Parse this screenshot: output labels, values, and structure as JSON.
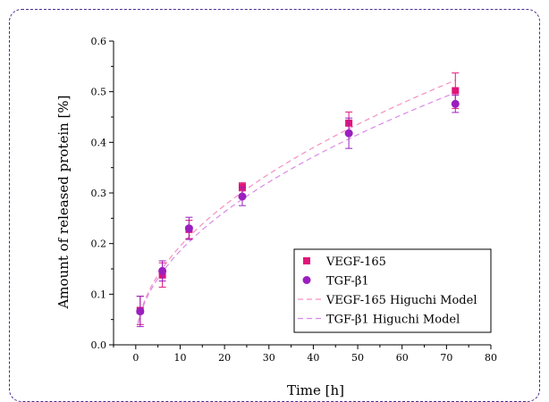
{
  "chart_data": {
    "type": "scatter",
    "xlabel": "Time [h]",
    "ylabel": "Amount of released protein [%]",
    "xlim": [
      -5,
      80
    ],
    "ylim": [
      0,
      0.6
    ],
    "xticks": [
      "0",
      "10",
      "20",
      "30",
      "40",
      "50",
      "60",
      "70",
      "80"
    ],
    "yticks": [
      "0.0",
      "0.1",
      "0.2",
      "0.3",
      "0.4",
      "0.5",
      "0.6"
    ],
    "grid": false,
    "legend_position": "bottom-right",
    "series": [
      {
        "name": "VEGF-165",
        "marker": "square",
        "color": "#e0157a",
        "x": [
          1,
          6,
          12,
          24,
          48,
          72
        ],
        "y": [
          0.068,
          0.138,
          0.228,
          0.312,
          0.438,
          0.502
        ],
        "error": [
          0.028,
          0.024,
          0.018,
          0.008,
          0.022,
          0.035
        ]
      },
      {
        "name": "TGF-β1",
        "marker": "circle",
        "color": "#9b1fbf",
        "x": [
          1,
          6,
          12,
          24,
          48,
          72
        ],
        "y": [
          0.066,
          0.146,
          0.23,
          0.293,
          0.418,
          0.476
        ],
        "error": [
          0.03,
          0.02,
          0.022,
          0.018,
          0.03,
          0.017
        ]
      }
    ],
    "models": [
      {
        "name": "VEGF-165 Higuchi Model",
        "color": "#f58fc0",
        "k": 0.0616
      },
      {
        "name": "TGF-β1 Higuchi Model",
        "color": "#d98ae8",
        "k": 0.0587
      }
    ]
  }
}
